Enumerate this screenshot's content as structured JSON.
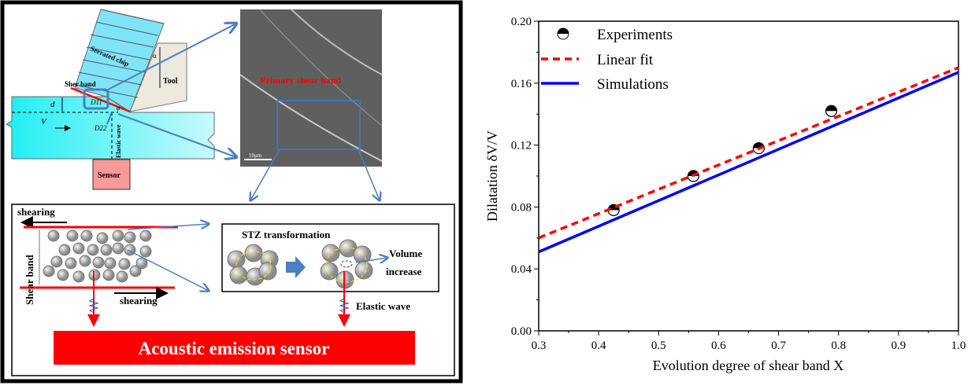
{
  "diagram": {
    "serrated_chip": "Serrated chip",
    "tool": "Tool",
    "shear_band_label": "Sher band",
    "d_label": "d",
    "v_label": "V",
    "d11_label": "D11",
    "d22_label": "D22",
    "phi_label": "φ",
    "alpha_label": "α",
    "elastic_wave_vertical": "Elastic wave",
    "sensor": "Sensor",
    "primary_shear_band": "Primary shear band",
    "scale_bar": "10μm",
    "shearing_top": "shearing",
    "shearing_bottom": "shearing",
    "shear_band_vertical": "Shear band",
    "stz_title": "STZ transformation",
    "volume_increase_1": "Volume",
    "volume_increase_2": "increase",
    "elastic_wave": "Elastic wave",
    "acoustic_sensor": "Acoustic emission sensor",
    "colors": {
      "workpiece": "#33f0f5",
      "chip": "#80e4f8",
      "tool": "#ece9df",
      "sensor": "#f79a9a",
      "red": "#ff0000",
      "arrow": "#4a7fc1"
    }
  },
  "chart_data": {
    "type": "scatter",
    "xlabel": "Evolution degree of shear band X",
    "ylabel": "Dilatation δV/V",
    "xlim": [
      0.3,
      1.0
    ],
    "ylim": [
      0.0,
      0.2
    ],
    "xticks": [
      "0.3",
      "0.4",
      "0.5",
      "0.6",
      "0.7",
      "0.8",
      "0.9",
      "1.0"
    ],
    "yticks": [
      "0.00",
      "0.04",
      "0.08",
      "0.12",
      "0.16",
      "0.20"
    ],
    "grid": false,
    "legend_placement": "top-left",
    "series": [
      {
        "name": "Experiments",
        "kind": "points",
        "x": [
          0.425,
          0.558,
          0.667,
          0.788
        ],
        "y": [
          0.078,
          0.1,
          0.118,
          0.142
        ],
        "color": "#000000"
      },
      {
        "name": "Linear fit",
        "kind": "dashed-line",
        "x": [
          0.3,
          1.0
        ],
        "y": [
          0.06,
          0.17
        ],
        "color": "#ff0000"
      },
      {
        "name": "Simulations",
        "kind": "line",
        "x": [
          0.3,
          1.0
        ],
        "y": [
          0.051,
          0.167
        ],
        "color": "#0000ff"
      }
    ]
  }
}
